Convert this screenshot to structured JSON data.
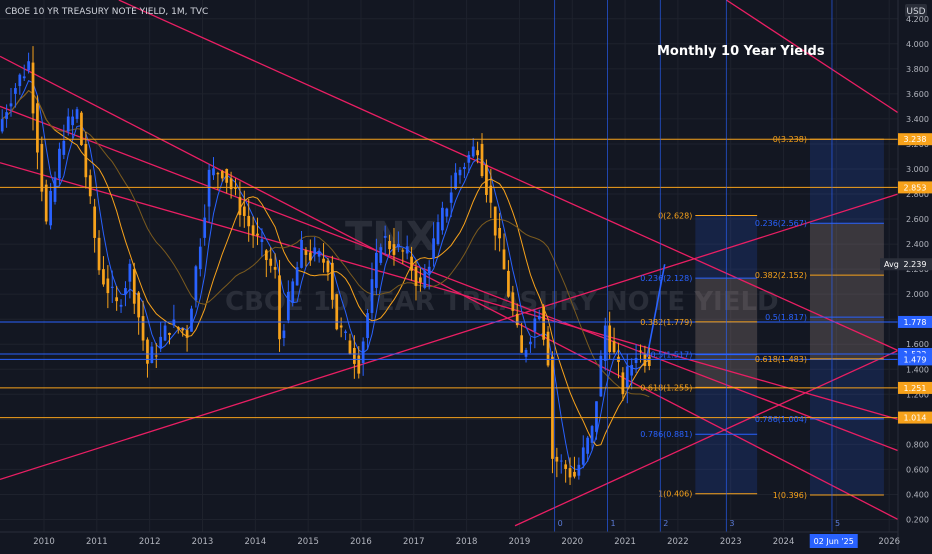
{
  "header": {
    "symbol_line": "CBOE 10 YR TREASURY NOTE YIELD, 1M, TVC",
    "currency": "USD"
  },
  "annotation_title": "Monthly 10 Year Yields",
  "watermark": {
    "ticker": "TNX",
    "name": "CBOE 10 YEAR TREASURY NOTE YIELD"
  },
  "chart_data": {
    "type": "candlestick",
    "title": "Monthly 10 Year Yields",
    "y_axis": {
      "ticks": [
        "4.200",
        "4.000",
        "3.800",
        "3.600",
        "3.400",
        "3.200",
        "3.000",
        "2.800",
        "2.600",
        "2.400",
        "2.200",
        "2.000",
        "1.800",
        "1.600",
        "1.400",
        "1.200",
        "1.000",
        "0.800",
        "0.600",
        "0.400",
        "0.200"
      ],
      "range": [
        0.1,
        4.35
      ]
    },
    "x_axis": {
      "ticks": [
        "2010",
        "2011",
        "2012",
        "2013",
        "2014",
        "2015",
        "2016",
        "2017",
        "2018",
        "2019",
        "2020",
        "2021",
        "2022",
        "2023",
        "2024",
        "2025",
        "2026"
      ],
      "range": [
        "2009-09",
        "2026-09"
      ]
    },
    "series_points": [
      [
        "2009-09",
        3.3
      ],
      [
        "2009-12",
        3.6
      ],
      [
        "2010-04",
        3.85
      ],
      [
        "2010-08",
        2.55
      ],
      [
        "2010-12",
        3.3
      ],
      [
        "2011-03",
        3.45
      ],
      [
        "2011-08",
        2.2
      ],
      [
        "2011-12",
        1.9
      ],
      [
        "2012-03",
        2.2
      ],
      [
        "2012-07",
        1.45
      ],
      [
        "2012-12",
        1.75
      ],
      [
        "2013-04",
        1.7
      ],
      [
        "2013-09",
        2.95
      ],
      [
        "2013-12",
        3.0
      ],
      [
        "2014-06",
        2.55
      ],
      [
        "2014-12",
        2.15
      ],
      [
        "2015-01",
        1.65
      ],
      [
        "2015-06",
        2.35
      ],
      [
        "2015-12",
        2.25
      ],
      [
        "2016-02",
        1.75
      ],
      [
        "2016-07",
        1.45
      ],
      [
        "2016-12",
        2.45
      ],
      [
        "2017-06",
        2.3
      ],
      [
        "2017-09",
        2.05
      ],
      [
        "2017-12",
        2.4
      ],
      [
        "2018-05",
        2.95
      ],
      [
        "2018-10",
        3.2
      ],
      [
        "2019-01",
        2.7
      ],
      [
        "2019-08",
        1.5
      ],
      [
        "2019-12",
        1.9
      ],
      [
        "2020-02",
        1.5
      ],
      [
        "2020-03",
        0.7
      ],
      [
        "2020-08",
        0.55
      ],
      [
        "2020-12",
        0.9
      ],
      [
        "2021-03",
        1.75
      ],
      [
        "2021-07",
        1.25
      ],
      [
        "2021-10",
        1.55
      ],
      [
        "2021-12",
        1.5
      ]
    ],
    "projection": {
      "from": [
        "2021-12",
        1.5
      ],
      "to": [
        "2022-04",
        2.239
      ]
    },
    "fib_left": [
      {
        "label": "0(2.628)",
        "value": 2.628
      },
      {
        "label": "0.236(2.128)",
        "value": 2.128
      },
      {
        "label": "0.382(1.779)",
        "value": 1.779
      },
      {
        "label": "0.5(1.517)",
        "value": 1.517
      },
      {
        "label": "0.618(1.255)",
        "value": 1.255
      },
      {
        "label": "0.786(0.881)",
        "value": 0.881
      },
      {
        "label": "1(0.406)",
        "value": 0.406
      }
    ],
    "fib_right": [
      {
        "label": "0(3.238)",
        "value": 3.238
      },
      {
        "label": "0.236(2.567)",
        "value": 2.567
      },
      {
        "label": "0.382(2.152)",
        "value": 2.152
      },
      {
        "label": "0.5(1.817)",
        "value": 1.817
      },
      {
        "label": "0.618(1.483)",
        "value": 1.483
      },
      {
        "label": "0.786(1.004)",
        "value": 1.004
      },
      {
        "label": "1(0.396)",
        "value": 0.396
      }
    ],
    "horizontal_levels": [
      {
        "value": 3.238,
        "label": "3.238",
        "color": "#f7a21b"
      },
      {
        "value": 2.853,
        "label": "2.853",
        "color": "#f7a21b"
      },
      {
        "value": 1.778,
        "label": "1.778",
        "color": "#2962ff"
      },
      {
        "value": 1.522,
        "label": "1.522",
        "color": "#2962ff"
      },
      {
        "value": 1.479,
        "label": "1.479",
        "color": "#2962ff"
      },
      {
        "value": 1.251,
        "label": "1.251",
        "color": "#f7a21b"
      },
      {
        "value": 1.014,
        "label": "1.014",
        "color": "#f7a21b"
      }
    ],
    "avg": {
      "label": "Avg",
      "value": "2.239"
    },
    "cycle_markers": [
      {
        "label": "0",
        "date": "2020-03"
      },
      {
        "label": "1",
        "date": "2021-03"
      },
      {
        "label": "2",
        "date": "2022-03"
      },
      {
        "label": "3",
        "date": "2023-06"
      },
      {
        "label": "5",
        "date": "2025-06"
      }
    ],
    "current_date_label": "02 Jun '25",
    "trendlines": [
      {
        "p1": [
          "2009-09",
          3.9
        ],
        "p2": [
          "2026-09",
          0.2
        ],
        "color": "#e91e63"
      },
      {
        "p1": [
          "2009-09",
          3.5
        ],
        "p2": [
          "2026-09",
          0.75
        ],
        "color": "#e91e63"
      },
      {
        "p1": [
          "2011-12",
          4.35
        ],
        "p2": [
          "2026-09",
          1.55
        ],
        "color": "#e91e63"
      },
      {
        "p1": [
          "2023-06",
          4.35
        ],
        "p2": [
          "2026-09",
          3.45
        ],
        "color": "#e91e63"
      },
      {
        "p1": [
          "2009-09",
          0.52
        ],
        "p2": [
          "2026-09",
          2.8
        ],
        "color": "#e91e63"
      },
      {
        "p1": [
          "2019-06",
          0.15
        ],
        "p2": [
          "2026-09",
          1.55
        ],
        "color": "#e91e63"
      },
      {
        "p1": [
          "2009-09",
          3.05
        ],
        "p2": [
          "2026-09",
          1.0
        ],
        "color": "#e91e63"
      }
    ],
    "colors": {
      "up": "#2962ff",
      "down": "#f7a21b",
      "trend": "#e91e63",
      "background": "#131722"
    }
  }
}
